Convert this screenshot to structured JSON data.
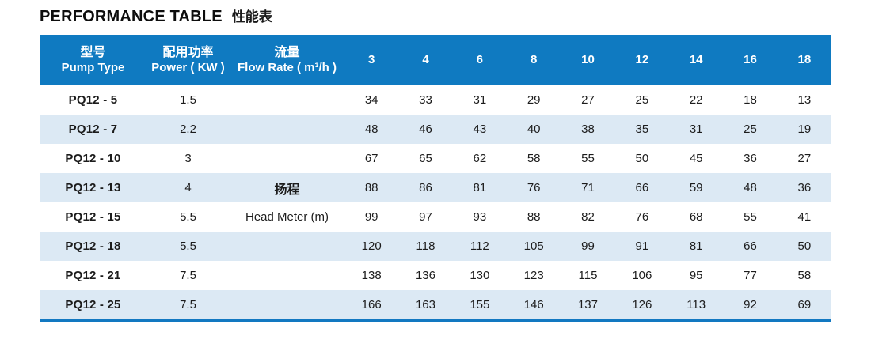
{
  "title": {
    "en": "PERFORMANCE TABLE",
    "zh": "性能表"
  },
  "colors": {
    "header_bg": "#0f7ac1",
    "header_text": "#ffffff",
    "row_bg": "#ffffff",
    "row_alt_bg": "#dce9f4",
    "bottom_border": "#1278c1",
    "body_text": "#1c1c1c"
  },
  "table": {
    "header": {
      "pump_type": {
        "zh": "型号",
        "en": "Pump Type"
      },
      "power": {
        "zh": "配用功率",
        "en": "Power ( KW )"
      },
      "flow_rate": {
        "zh": "流量",
        "en": "Flow Rate ( m³/h )"
      },
      "flow_columns": [
        "3",
        "4",
        "6",
        "8",
        "10",
        "12",
        "14",
        "16",
        "18"
      ]
    },
    "head_label": {
      "zh": "扬程",
      "en": "Head Meter (m)"
    },
    "rows": [
      {
        "pump_type": "PQ12 - 5",
        "power": "1.5",
        "values": [
          34,
          33,
          31,
          29,
          27,
          25,
          22,
          18,
          13
        ]
      },
      {
        "pump_type": "PQ12 - 7",
        "power": "2.2",
        "values": [
          48,
          46,
          43,
          40,
          38,
          35,
          31,
          25,
          19
        ]
      },
      {
        "pump_type": "PQ12 - 10",
        "power": "3",
        "values": [
          67,
          65,
          62,
          58,
          55,
          50,
          45,
          36,
          27
        ]
      },
      {
        "pump_type": "PQ12 - 13",
        "power": "4",
        "values": [
          88,
          86,
          81,
          76,
          71,
          66,
          59,
          48,
          36
        ]
      },
      {
        "pump_type": "PQ12 - 15",
        "power": "5.5",
        "values": [
          99,
          97,
          93,
          88,
          82,
          76,
          68,
          55,
          41
        ]
      },
      {
        "pump_type": "PQ12 - 18",
        "power": "5.5",
        "values": [
          120,
          118,
          112,
          105,
          99,
          91,
          81,
          66,
          50
        ]
      },
      {
        "pump_type": "PQ12 - 21",
        "power": "7.5",
        "values": [
          138,
          136,
          130,
          123,
          115,
          106,
          95,
          77,
          58
        ]
      },
      {
        "pump_type": "PQ12 - 25",
        "power": "7.5",
        "values": [
          166,
          163,
          155,
          146,
          137,
          126,
          113,
          92,
          69
        ]
      }
    ]
  }
}
